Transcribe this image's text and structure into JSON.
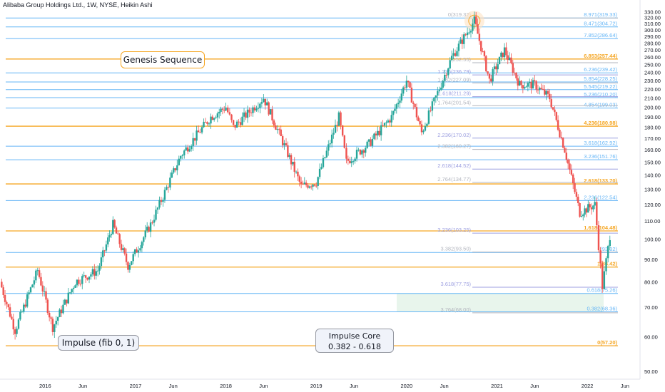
{
  "header": {
    "title": "Alibaba Group Holdings Ltd., 1W, NYSE, Heikin Ashi"
  },
  "annotations": {
    "genesis": "Genesis Sequence",
    "impulse": "Impulse (fib 0, 1)",
    "core_line1": "Impulse Core",
    "core_line2": "0.382 - 0.618"
  },
  "colors": {
    "up": "#26a69a",
    "down": "#ef5350",
    "orange": "#f5a623",
    "blue": "#64b5f6",
    "lavender": "#9c9fe0",
    "grey": "#b2b5be"
  },
  "chart_data": {
    "type": "candlestick",
    "y_axis": {
      "scale": "log",
      "min": 48,
      "max": 333,
      "ticks": [
        50,
        60,
        70,
        80,
        90,
        100,
        110,
        120,
        130,
        140,
        150,
        160,
        170,
        180,
        190,
        200,
        210,
        220,
        230,
        240,
        250,
        260,
        270,
        280,
        290,
        300,
        310,
        320,
        330
      ],
      "tick_labels": [
        "50.00",
        "60.00",
        "70.00",
        "80.00",
        "90.00",
        "100.00",
        "110.00",
        "120.00",
        "130.00",
        "140.00",
        "150.00",
        "160.00",
        "170.00",
        "180.00",
        "190.00",
        "200.00",
        "210.00",
        "220.00",
        "230.00",
        "240.00",
        "250.00",
        "260.00",
        "270.00",
        "280.00",
        "290.00",
        "300.00",
        "310.00",
        "320.00",
        "330.00"
      ]
    },
    "x_axis": {
      "start": "2015-07",
      "end": "2022-08",
      "ticks": [
        {
          "date": "2016-01",
          "label": "2016"
        },
        {
          "date": "2016-06",
          "label": "Jun"
        },
        {
          "date": "2017-01",
          "label": "2017"
        },
        {
          "date": "2017-06",
          "label": "Jun"
        },
        {
          "date": "2018-01",
          "label": "2018"
        },
        {
          "date": "2018-06",
          "label": "Jun"
        },
        {
          "date": "2019-01",
          "label": "2019"
        },
        {
          "date": "2019-06",
          "label": "Jun"
        },
        {
          "date": "2020-01",
          "label": "2020"
        },
        {
          "date": "2020-06",
          "label": "Jun"
        },
        {
          "date": "2021-01",
          "label": "2021"
        },
        {
          "date": "2021-06",
          "label": "Jun"
        },
        {
          "date": "2022-01",
          "label": "2022"
        },
        {
          "date": "2022-06",
          "label": "Jun"
        }
      ]
    },
    "price_path": [
      [
        "2015-07",
        80
      ],
      [
        "2015-09",
        62
      ],
      [
        "2015-12",
        85
      ],
      [
        "2016-02",
        63
      ],
      [
        "2016-05",
        80
      ],
      [
        "2016-08",
        85
      ],
      [
        "2016-10",
        108
      ],
      [
        "2016-12",
        87
      ],
      [
        "2017-03",
        108
      ],
      [
        "2017-07",
        155
      ],
      [
        "2017-11",
        190
      ],
      [
        "2018-01",
        200
      ],
      [
        "2018-02",
        180
      ],
      [
        "2018-06",
        210
      ],
      [
        "2018-09",
        160
      ],
      [
        "2018-11",
        132
      ],
      [
        "2019-01",
        135
      ],
      [
        "2019-04",
        190
      ],
      [
        "2019-05",
        150
      ],
      [
        "2019-08",
        165
      ],
      [
        "2019-11",
        190
      ],
      [
        "2020-01",
        230
      ],
      [
        "2020-03",
        175
      ],
      [
        "2020-07",
        260
      ],
      [
        "2020-10",
        315
      ],
      [
        "2020-12",
        230
      ],
      [
        "2021-02",
        270
      ],
      [
        "2021-04",
        225
      ],
      [
        "2021-06",
        225
      ],
      [
        "2021-08",
        210
      ],
      [
        "2021-10",
        160
      ],
      [
        "2021-12",
        115
      ],
      [
        "2022-02",
        120
      ],
      [
        "2022-03",
        78
      ],
      [
        "2022-04",
        102
      ]
    ],
    "levels_right": [
      {
        "label": "8.971(319.33)",
        "value": 319.33,
        "color": "blue"
      },
      {
        "label": "8.471(304.72)",
        "value": 304.72,
        "color": "blue"
      },
      {
        "label": "7.852(286.64)",
        "value": 286.64,
        "color": "blue"
      },
      {
        "label": "6.853(257.44)",
        "value": 257.44,
        "color": "orange"
      },
      {
        "label": "6.236(239.42)",
        "value": 239.42,
        "color": "blue"
      },
      {
        "label": "5.854(228.25)",
        "value": 228.25,
        "color": "blue"
      },
      {
        "label": "5.545(219.22)",
        "value": 219.22,
        "color": "blue"
      },
      {
        "label": "5.236(210.20)",
        "value": 210.2,
        "color": "blue"
      },
      {
        "label": "4.854(199.03)",
        "value": 199.03,
        "color": "blue"
      },
      {
        "label": "4.236(180.98)",
        "value": 180.98,
        "color": "orange"
      },
      {
        "label": "3.618(162.92)",
        "value": 162.92,
        "color": "blue"
      },
      {
        "label": "3.236(151.76)",
        "value": 151.76,
        "color": "blue"
      },
      {
        "label": "2.618(133.70)",
        "value": 133.7,
        "color": "orange"
      },
      {
        "label": "2.236(122.54)",
        "value": 122.54,
        "color": "blue"
      },
      {
        "label": "1.618(104.48)",
        "value": 104.48,
        "color": "orange"
      },
      {
        "label": "(93.32)",
        "value": 93.32,
        "color": "blue"
      },
      {
        "label": "1(86.42)",
        "value": 86.42,
        "color": "orange"
      },
      {
        "label": "0.618(75.26)",
        "value": 75.26,
        "color": "blue"
      },
      {
        "label": "0.382(68.36)",
        "value": 68.36,
        "color": "blue"
      },
      {
        "label": "0(57.20)",
        "value": 57.2,
        "color": "orange"
      }
    ],
    "levels_mid": [
      {
        "label": "0(319.32)",
        "value": 319.32,
        "color": "grey"
      },
      {
        "label": "(252.55)",
        "value": 252.55,
        "color": "grey"
      },
      {
        "label": "1.236(236.79)",
        "value": 236.79,
        "color": "lavender"
      },
      {
        "label": "1.382(227.09)",
        "value": 227.09,
        "color": "grey"
      },
      {
        "label": "1.618(211.29)",
        "value": 211.29,
        "color": "lavender"
      },
      {
        "label": "1.764(201.54)",
        "value": 201.54,
        "color": "grey"
      },
      {
        "label": "2.236(170.02)",
        "value": 170.02,
        "color": "lavender"
      },
      {
        "label": "2.382(160.27)",
        "value": 160.27,
        "color": "grey"
      },
      {
        "label": "2.618(144.52)",
        "value": 144.52,
        "color": "lavender"
      },
      {
        "label": "2.764(134.77)",
        "value": 134.77,
        "color": "grey"
      },
      {
        "label": "3.236(103.25)",
        "value": 103.25,
        "color": "lavender"
      },
      {
        "label": "3.382(93.50)",
        "value": 93.5,
        "color": "grey"
      },
      {
        "label": "3.618(77.75)",
        "value": 77.75,
        "color": "lavender"
      },
      {
        "label": "3.764(68.00)",
        "value": 68.0,
        "color": "grey"
      }
    ],
    "core_zone": {
      "low": 68.36,
      "high": 75.26
    }
  }
}
